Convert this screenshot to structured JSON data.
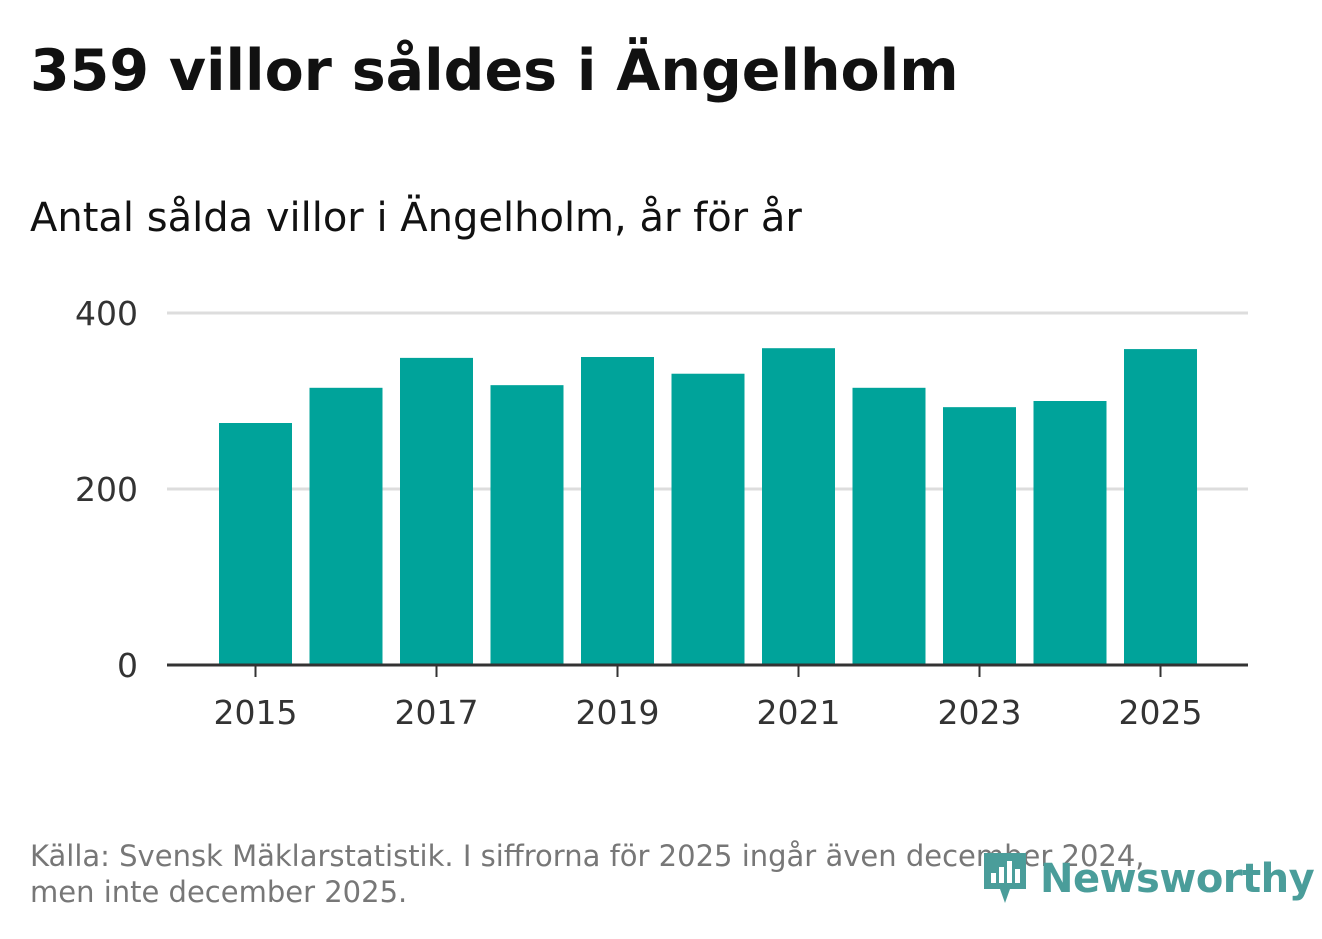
{
  "header": {
    "title": "359 villor såldes i Ängelholm",
    "subtitle": "Antal sålda villor i Ängelholm, år för år"
  },
  "footer": {
    "source_line1": "Källa: Svensk Mäklarstatistik. I siffrorna för 2025 ingår även december 2024,",
    "source_line2": "men inte december 2025."
  },
  "brand": {
    "name": "Newsworthy",
    "color": "#4a9d9a"
  },
  "colors": {
    "bar": "#00a39a",
    "grid": "#dddddd",
    "axis": "#333333"
  },
  "chart_data": {
    "type": "bar",
    "title": "359 villor såldes i Ängelholm",
    "subtitle": "Antal sålda villor i Ängelholm, år för år",
    "xlabel": "",
    "ylabel": "",
    "categories": [
      "2015",
      "2016",
      "2017",
      "2018",
      "2019",
      "2020",
      "2021",
      "2022",
      "2023",
      "2024",
      "2025"
    ],
    "values": [
      275,
      315,
      349,
      318,
      350,
      331,
      360,
      315,
      293,
      300,
      359
    ],
    "ylim": [
      0,
      400
    ],
    "yticks": [
      0,
      200,
      400
    ],
    "xtick_labels": [
      "2015",
      "2017",
      "2019",
      "2021",
      "2023",
      "2025"
    ],
    "grid": true
  }
}
